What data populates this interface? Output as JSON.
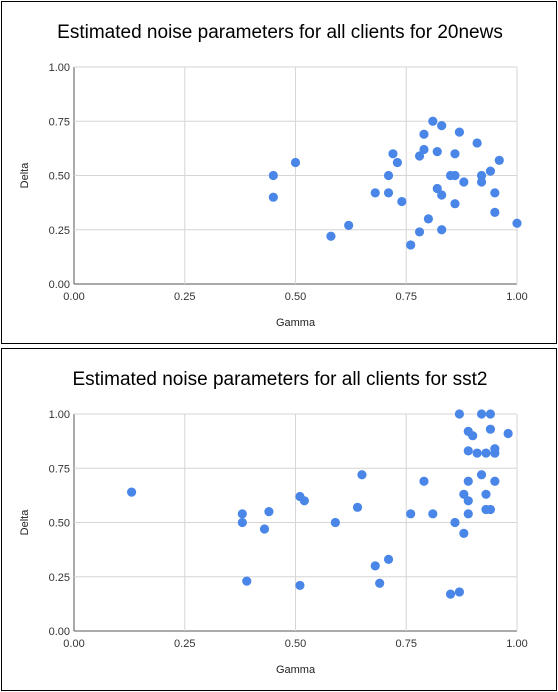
{
  "chart_data": [
    {
      "type": "scatter",
      "title": "Estimated noise parameters for all clients for 20news",
      "xlabel": "Gamma",
      "ylabel": "Delta",
      "xlim": [
        0,
        1
      ],
      "ylim": [
        0,
        1
      ],
      "xticks": [
        "0.00",
        "0.25",
        "0.50",
        "0.75",
        "1.00"
      ],
      "yticks": [
        "0.00",
        "0.25",
        "0.50",
        "0.75",
        "1.00"
      ],
      "grid": true,
      "color": "#4a86e8",
      "points": [
        [
          0.45,
          0.5
        ],
        [
          0.45,
          0.4
        ],
        [
          0.5,
          0.56
        ],
        [
          0.58,
          0.22
        ],
        [
          0.62,
          0.27
        ],
        [
          0.68,
          0.42
        ],
        [
          0.71,
          0.42
        ],
        [
          0.71,
          0.5
        ],
        [
          0.72,
          0.6
        ],
        [
          0.73,
          0.56
        ],
        [
          0.74,
          0.38
        ],
        [
          0.76,
          0.18
        ],
        [
          0.78,
          0.24
        ],
        [
          0.78,
          0.59
        ],
        [
          0.79,
          0.62
        ],
        [
          0.79,
          0.69
        ],
        [
          0.8,
          0.3
        ],
        [
          0.81,
          0.75
        ],
        [
          0.82,
          0.61
        ],
        [
          0.82,
          0.44
        ],
        [
          0.83,
          0.41
        ],
        [
          0.83,
          0.73
        ],
        [
          0.83,
          0.25
        ],
        [
          0.85,
          0.5
        ],
        [
          0.86,
          0.5
        ],
        [
          0.86,
          0.6
        ],
        [
          0.86,
          0.37
        ],
        [
          0.87,
          0.7
        ],
        [
          0.88,
          0.47
        ],
        [
          0.91,
          0.65
        ],
        [
          0.92,
          0.47
        ],
        [
          0.92,
          0.5
        ],
        [
          0.94,
          0.52
        ],
        [
          0.95,
          0.42
        ],
        [
          0.95,
          0.33
        ],
        [
          0.96,
          0.57
        ],
        [
          1.0,
          0.28
        ]
      ]
    },
    {
      "type": "scatter",
      "title": "Estimated noise parameters for all clients for sst2",
      "xlabel": "Gamma",
      "ylabel": "Delta",
      "xlim": [
        0,
        1
      ],
      "ylim": [
        0,
        1
      ],
      "xticks": [
        "0.00",
        "0.25",
        "0.50",
        "0.75",
        "1.00"
      ],
      "yticks": [
        "0.00",
        "0.25",
        "0.50",
        "0.75",
        "1.00"
      ],
      "grid": true,
      "color": "#4a86e8",
      "points": [
        [
          0.13,
          0.64
        ],
        [
          0.38,
          0.54
        ],
        [
          0.38,
          0.5
        ],
        [
          0.39,
          0.23
        ],
        [
          0.43,
          0.47
        ],
        [
          0.44,
          0.55
        ],
        [
          0.51,
          0.62
        ],
        [
          0.51,
          0.21
        ],
        [
          0.52,
          0.6
        ],
        [
          0.59,
          0.5
        ],
        [
          0.64,
          0.57
        ],
        [
          0.65,
          0.72
        ],
        [
          0.68,
          0.3
        ],
        [
          0.69,
          0.22
        ],
        [
          0.71,
          0.33
        ],
        [
          0.76,
          0.54
        ],
        [
          0.79,
          0.69
        ],
        [
          0.81,
          0.54
        ],
        [
          0.85,
          0.17
        ],
        [
          0.86,
          0.5
        ],
        [
          0.87,
          1.0
        ],
        [
          0.87,
          0.18
        ],
        [
          0.88,
          0.63
        ],
        [
          0.88,
          0.45
        ],
        [
          0.89,
          0.6
        ],
        [
          0.89,
          0.54
        ],
        [
          0.89,
          0.69
        ],
        [
          0.89,
          0.92
        ],
        [
          0.89,
          0.83
        ],
        [
          0.9,
          0.9
        ],
        [
          0.91,
          0.82
        ],
        [
          0.92,
          0.72
        ],
        [
          0.92,
          1.0
        ],
        [
          0.93,
          0.82
        ],
        [
          0.93,
          0.63
        ],
        [
          0.93,
          0.56
        ],
        [
          0.94,
          0.56
        ],
        [
          0.94,
          0.93
        ],
        [
          0.94,
          1.0
        ],
        [
          0.95,
          0.84
        ],
        [
          0.95,
          0.82
        ],
        [
          0.95,
          0.69
        ],
        [
          0.98,
          0.91
        ]
      ]
    }
  ]
}
